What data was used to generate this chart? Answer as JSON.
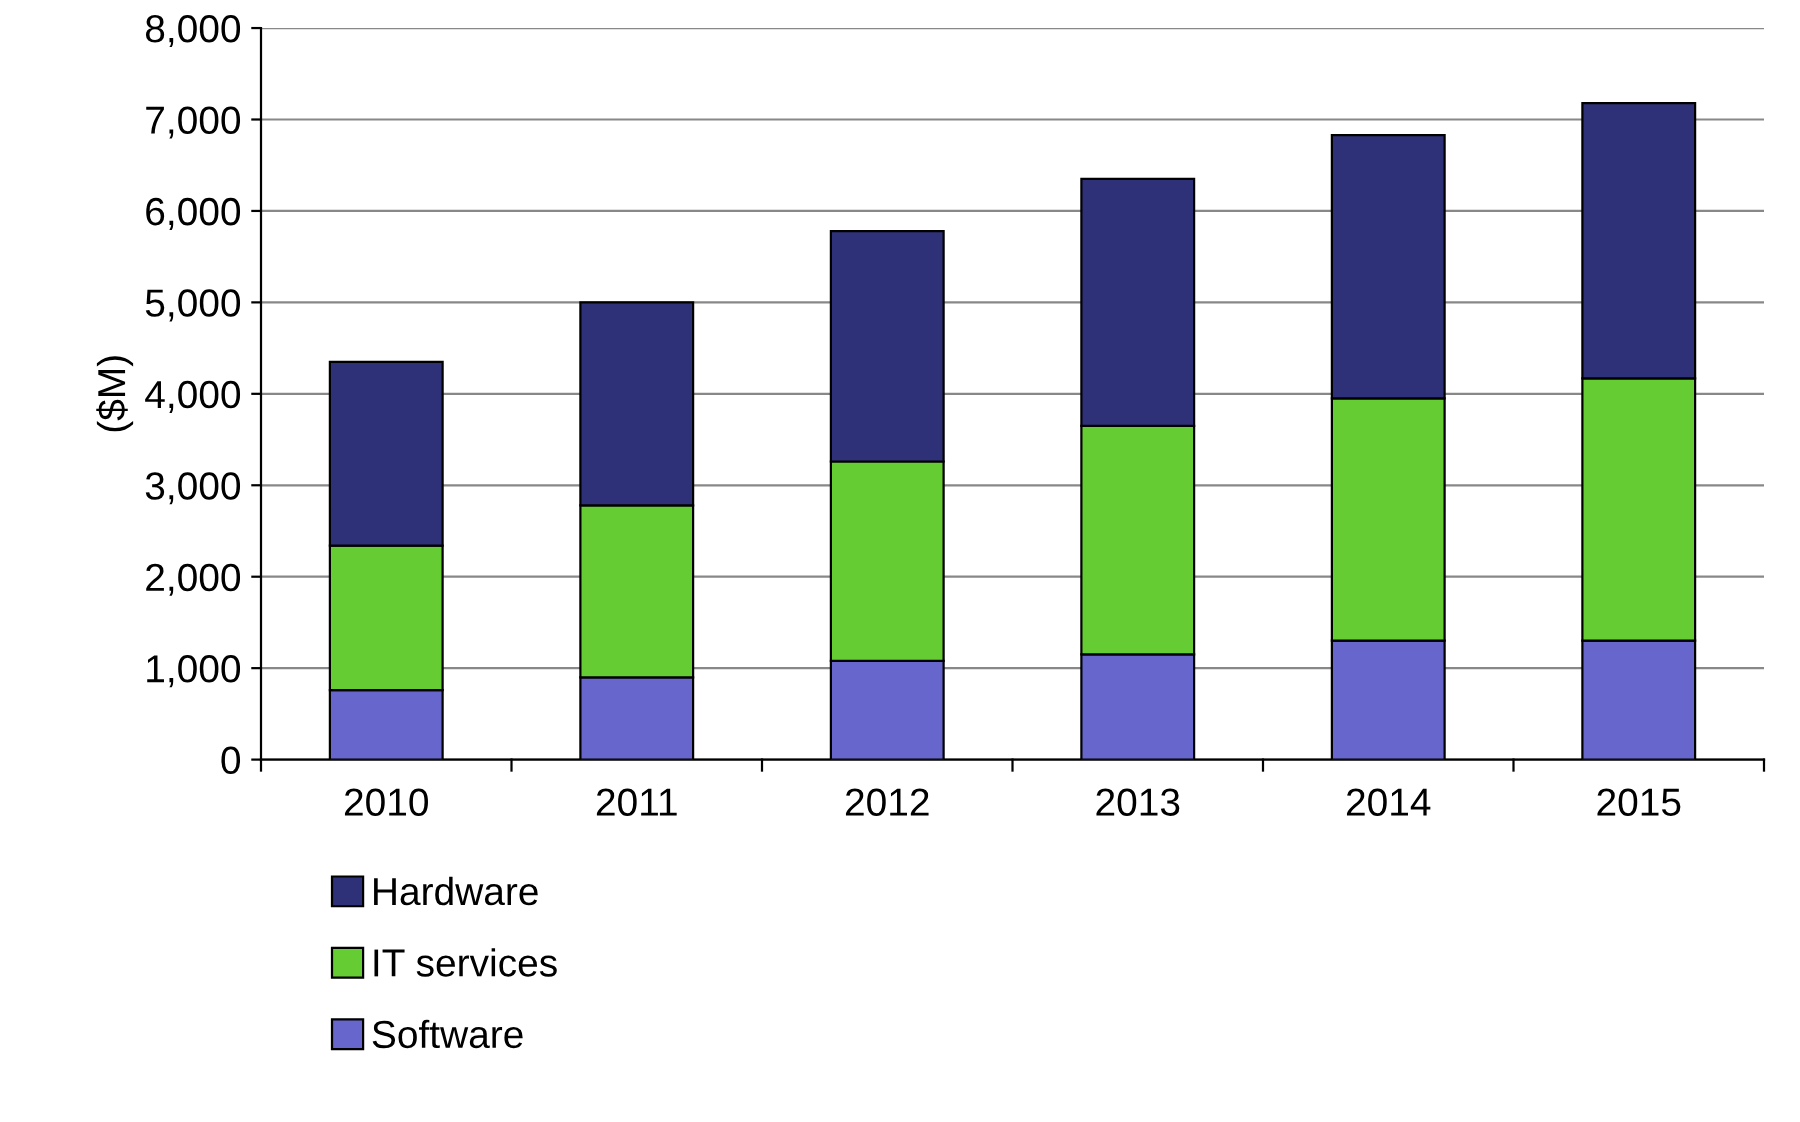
{
  "chart_data": {
    "type": "bar",
    "stacked": true,
    "ylabel": "($M)",
    "categories": [
      "2010",
      "2011",
      "2012",
      "2013",
      "2014",
      "2015"
    ],
    "series": [
      {
        "name": "Software",
        "color": "#6666cc",
        "values": [
          760,
          900,
          1080,
          1150,
          1300,
          1300
        ]
      },
      {
        "name": "IT services",
        "color": "#66cc33",
        "values": [
          1580,
          1880,
          2180,
          2500,
          2650,
          2870
        ]
      },
      {
        "name": "Hardware",
        "color": "#2e3178",
        "values": [
          2010,
          2220,
          2520,
          2700,
          2880,
          3010
        ]
      }
    ],
    "ylim": [
      0,
      8000
    ],
    "yticks": [
      {
        "value": 0,
        "label": "0"
      },
      {
        "value": 1000,
        "label": "1,000"
      },
      {
        "value": 2000,
        "label": "2,000"
      },
      {
        "value": 3000,
        "label": "3,000"
      },
      {
        "value": 4000,
        "label": "4,000"
      },
      {
        "value": 5000,
        "label": "5,000"
      },
      {
        "value": 6000,
        "label": "6,000"
      },
      {
        "value": 7000,
        "label": "7,000"
      },
      {
        "value": 8000,
        "label": "8,000"
      }
    ],
    "grid": "y",
    "legend": "bottom"
  }
}
